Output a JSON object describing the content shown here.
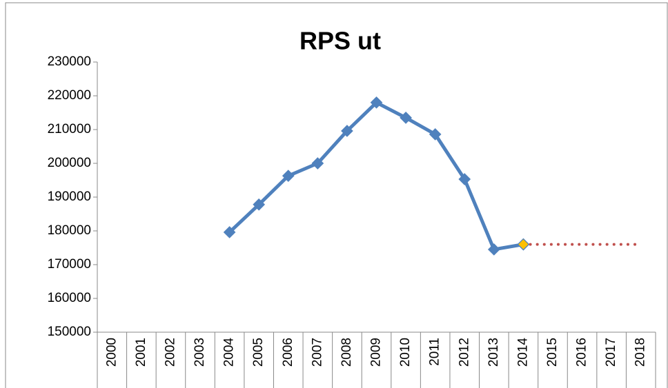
{
  "chart_data": {
    "type": "line",
    "title": "RPS ut",
    "categories": [
      "2000",
      "2001",
      "2002",
      "2003",
      "2004",
      "2005",
      "2006",
      "2007",
      "2008",
      "2009",
      "2010",
      "2011",
      "2012",
      "2013",
      "2014",
      "2015",
      "2016",
      "2017",
      "2018"
    ],
    "series": [
      {
        "color": "#4f81bd",
        "line_style": "solid",
        "marker": "diamond",
        "marker_color": "#4f81bd",
        "values": [
          null,
          null,
          null,
          null,
          179600,
          187800,
          196300,
          200000,
          209600,
          218000,
          213500,
          208600,
          195300,
          174500,
          176000,
          null,
          null,
          null,
          null
        ]
      },
      {
        "color": "#c0504d",
        "line_style": "dotted",
        "marker": "none",
        "values": [
          null,
          null,
          null,
          null,
          null,
          null,
          null,
          null,
          null,
          null,
          null,
          null,
          null,
          null,
          176000,
          176000,
          176000,
          176000,
          176000
        ]
      },
      {
        "color": "#4f81bd",
        "line_style": "none",
        "marker": "diamond",
        "marker_color": "#ffc000",
        "values": [
          null,
          null,
          null,
          null,
          null,
          null,
          null,
          null,
          null,
          null,
          null,
          null,
          null,
          null,
          176000,
          null,
          null,
          null,
          null
        ]
      }
    ],
    "ylim": [
      150000,
      230000
    ],
    "yticks": [
      150000,
      160000,
      170000,
      180000,
      190000,
      200000,
      210000,
      220000,
      230000
    ],
    "grid": false
  }
}
